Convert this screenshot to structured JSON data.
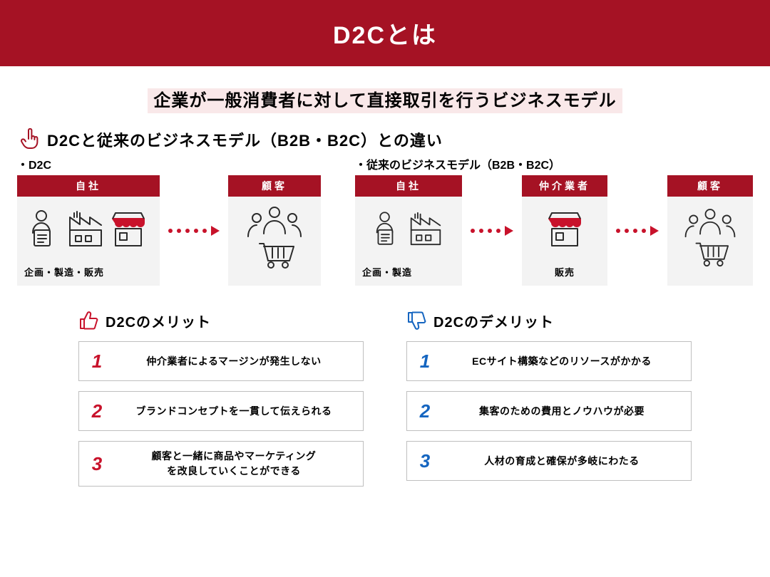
{
  "colors": {
    "brand_red": "#a51224",
    "accent_red": "#c8122b",
    "accent_blue": "#1565c0",
    "box_bg": "#f3f3f3",
    "highlight_bg": "#f9e8e9",
    "border_gray": "#bfbfbf",
    "icon_stroke": "#2b2b2b"
  },
  "header": {
    "title": "D2Cとは"
  },
  "subheading": "企業が一般消費者に対して直接取引を行うビジネスモデル",
  "compare": {
    "heading": "D2Cと従来のビジネスモデル（B2B・B2C）との違い",
    "d2c": {
      "label": "・D2C",
      "company_head": "自社",
      "company_foot": "企画・製造・販売",
      "customer_head": "顧客"
    },
    "trad": {
      "label": "・従来のビジネスモデル（B2B・B2C）",
      "company_head": "自社",
      "company_foot": "企画・製造",
      "middle_head": "仲介業者",
      "middle_foot": "販売",
      "customer_head": "顧客"
    }
  },
  "pros": {
    "title": "D2Cのメリット",
    "items": [
      "仲介業者によるマージンが発生しない",
      "ブランドコンセプトを一貫して伝えられる",
      "顧客と一緒に商品やマーケティング\nを改良していくことができる"
    ]
  },
  "cons": {
    "title": "D2Cのデメリット",
    "items": [
      "ECサイト構築などのリソースがかかる",
      "集客のための費用とノウハウが必要",
      "人材の育成と確保が多岐にわたる"
    ]
  }
}
